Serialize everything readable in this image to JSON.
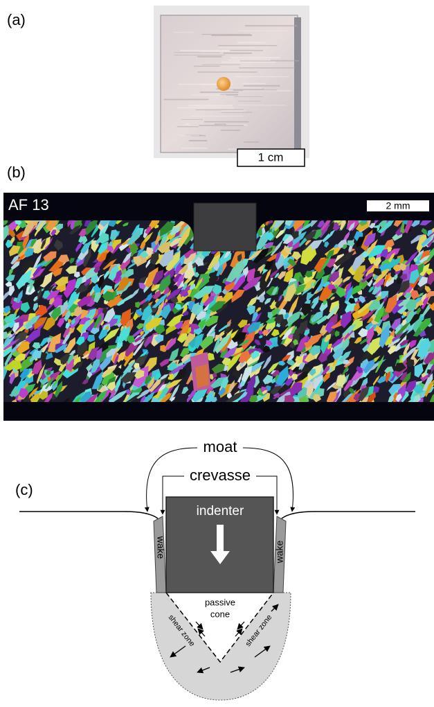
{
  "panel_a": {
    "label": "(a)",
    "scale_bar": "1 cm"
  },
  "panel_b": {
    "label": "(b)",
    "sample": "AF 13",
    "scale_bar": "2 mm"
  },
  "panel_c": {
    "label": "(c)",
    "moat": "moat",
    "crevasse": "crevasse",
    "indenter": "indenter",
    "wake_left": "wake",
    "wake_right": "wake",
    "passive_cone": [
      "passive",
      "cone"
    ],
    "shear_zone_left": "shear zone",
    "shear_zone_right": "shear zone"
  }
}
